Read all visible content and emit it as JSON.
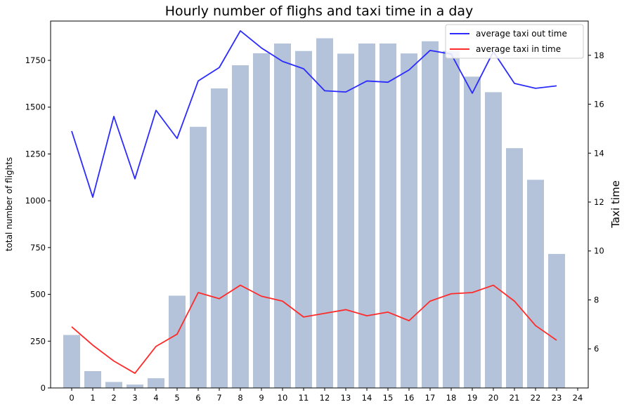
{
  "chart_data": {
    "type": "bar",
    "title": "Hourly number of flighs and taxi time in a day",
    "xlabel": "",
    "ylabel_left": "total number of flights",
    "ylabel_right": "Taxi time",
    "x_ticks": [
      0,
      1,
      2,
      3,
      4,
      5,
      6,
      7,
      8,
      9,
      10,
      11,
      12,
      13,
      14,
      15,
      16,
      17,
      18,
      19,
      20,
      21,
      22,
      23,
      24
    ],
    "xlim": [
      -1,
      24.5
    ],
    "ylim_left": [
      0,
      1960
    ],
    "ylim_right": [
      4.4,
      19.4
    ],
    "y_ticks_left": [
      0,
      250,
      500,
      750,
      1000,
      1250,
      1500,
      1750
    ],
    "y_ticks_right": [
      6,
      8,
      10,
      12,
      14,
      16,
      18
    ],
    "bar_color": "#b4c3d9",
    "categories": [
      0,
      1,
      2,
      3,
      4,
      5,
      6,
      7,
      8,
      9,
      10,
      11,
      12,
      13,
      14,
      15,
      16,
      17,
      18,
      19,
      20,
      21,
      22,
      23
    ],
    "values": [
      283,
      90,
      32,
      18,
      52,
      493,
      1395,
      1600,
      1724,
      1788,
      1840,
      1800,
      1868,
      1786,
      1840,
      1840,
      1787,
      1852,
      1800,
      1663,
      1580,
      1281,
      1112,
      716
    ],
    "series": [
      {
        "name": "average taxi out time",
        "color": "#2b2bff",
        "values": [
          14.9,
          12.2,
          15.5,
          12.95,
          15.75,
          14.6,
          16.95,
          17.5,
          19.0,
          18.3,
          17.75,
          17.45,
          16.55,
          16.5,
          16.95,
          16.9,
          17.4,
          18.2,
          18.05,
          16.45,
          18.15,
          16.85,
          16.65,
          16.75
        ]
      },
      {
        "name": "average taxi in time",
        "color": "#ff2b2b",
        "values": [
          6.9,
          6.15,
          5.5,
          5.0,
          6.1,
          6.6,
          8.3,
          8.05,
          8.6,
          8.15,
          7.95,
          7.3,
          7.45,
          7.6,
          7.35,
          7.5,
          7.15,
          7.95,
          8.25,
          8.3,
          8.6,
          7.95,
          6.95,
          6.35
        ]
      }
    ],
    "legend_position": "top-right",
    "grid": false
  }
}
